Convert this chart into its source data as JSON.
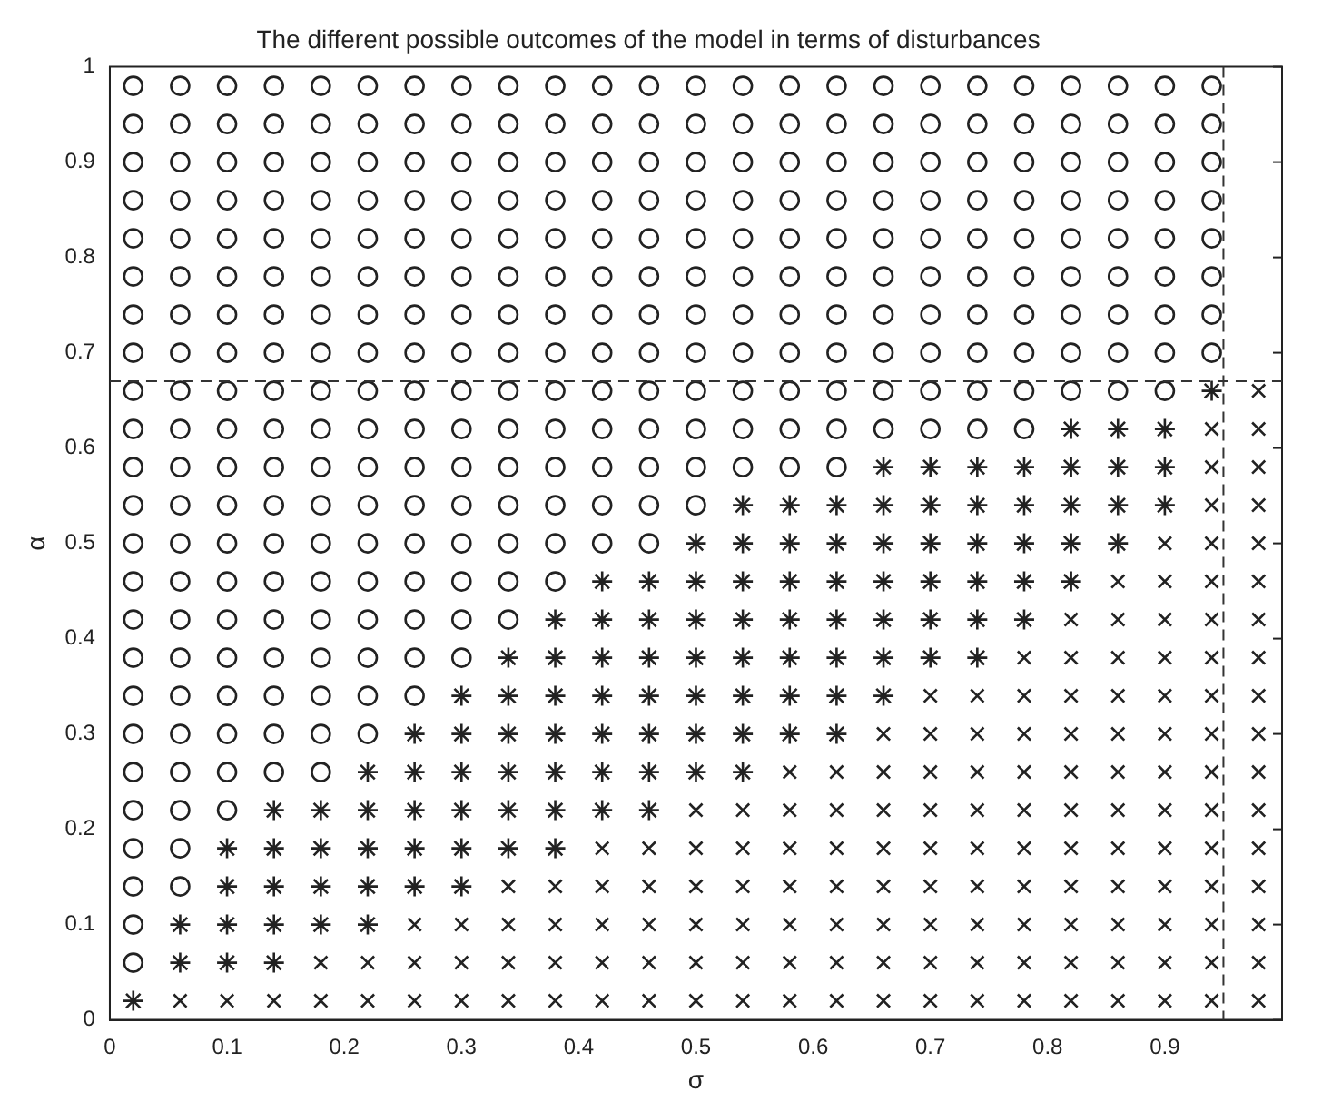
{
  "chart_data": {
    "type": "scatter",
    "title": "The different possible outcomes of the model in terms of disturbances",
    "xlabel": "σ",
    "ylabel": "α",
    "xlim": [
      0,
      1
    ],
    "ylim": [
      0,
      1
    ],
    "xticks": [
      0,
      0.1,
      0.2,
      0.3,
      0.4,
      0.5,
      0.6,
      0.7,
      0.8,
      0.9
    ],
    "yticks": [
      0,
      0.1,
      0.2,
      0.3,
      0.4,
      0.5,
      0.6,
      0.7,
      0.8,
      0.9,
      1
    ],
    "ref_lines": [
      {
        "axis": "y",
        "value": 0.67,
        "color": "#333333",
        "line_style": "dashed"
      },
      {
        "axis": "x",
        "value": 0.95,
        "color": "#333333",
        "line_style": "dashed"
      }
    ],
    "series": [
      {
        "color": "#222222",
        "marker": "circle",
        "x": [
          0.02,
          0.02,
          0.02,
          0.06,
          0.02,
          0.06,
          0.02,
          0.06,
          0.1,
          0.02,
          0.06,
          0.1,
          0.14,
          0.18,
          0.02,
          0.06,
          0.1,
          0.14,
          0.18,
          0.22,
          0.02,
          0.06,
          0.1,
          0.14,
          0.18,
          0.22,
          0.26,
          0.02,
          0.06,
          0.1,
          0.14,
          0.18,
          0.22,
          0.26,
          0.3,
          0.02,
          0.06,
          0.1,
          0.14,
          0.18,
          0.22,
          0.26,
          0.3,
          0.34,
          0.02,
          0.06,
          0.1,
          0.14,
          0.18,
          0.22,
          0.26,
          0.3,
          0.34,
          0.38,
          0.02,
          0.06,
          0.1,
          0.14,
          0.18,
          0.22,
          0.26,
          0.3,
          0.34,
          0.38,
          0.42,
          0.46,
          0.02,
          0.06,
          0.1,
          0.14,
          0.18,
          0.22,
          0.26,
          0.3,
          0.34,
          0.38,
          0.42,
          0.46,
          0.5,
          0.02,
          0.06,
          0.1,
          0.14,
          0.18,
          0.22,
          0.26,
          0.3,
          0.34,
          0.38,
          0.42,
          0.46,
          0.5,
          0.54,
          0.58,
          0.62,
          0.02,
          0.06,
          0.1,
          0.14,
          0.18,
          0.22,
          0.26,
          0.3,
          0.34,
          0.38,
          0.42,
          0.46,
          0.5,
          0.54,
          0.58,
          0.62,
          0.66,
          0.7,
          0.74,
          0.78,
          0.02,
          0.06,
          0.1,
          0.14,
          0.18,
          0.22,
          0.26,
          0.3,
          0.34,
          0.38,
          0.42,
          0.46,
          0.5,
          0.54,
          0.58,
          0.62,
          0.66,
          0.7,
          0.74,
          0.78,
          0.82,
          0.86,
          0.9,
          0.02,
          0.06,
          0.1,
          0.14,
          0.18,
          0.22,
          0.26,
          0.3,
          0.34,
          0.38,
          0.42,
          0.46,
          0.5,
          0.54,
          0.58,
          0.62,
          0.66,
          0.7,
          0.74,
          0.78,
          0.82,
          0.86,
          0.9,
          0.94,
          0.02,
          0.06,
          0.1,
          0.14,
          0.18,
          0.22,
          0.26,
          0.3,
          0.34,
          0.38,
          0.42,
          0.46,
          0.5,
          0.54,
          0.58,
          0.62,
          0.66,
          0.7,
          0.74,
          0.78,
          0.82,
          0.86,
          0.9,
          0.94,
          0.02,
          0.06,
          0.1,
          0.14,
          0.18,
          0.22,
          0.26,
          0.3,
          0.34,
          0.38,
          0.42,
          0.46,
          0.5,
          0.54,
          0.58,
          0.62,
          0.66,
          0.7,
          0.74,
          0.78,
          0.82,
          0.86,
          0.9,
          0.94,
          0.02,
          0.06,
          0.1,
          0.14,
          0.18,
          0.22,
          0.26,
          0.3,
          0.34,
          0.38,
          0.42,
          0.46,
          0.5,
          0.54,
          0.58,
          0.62,
          0.66,
          0.7,
          0.74,
          0.78,
          0.82,
          0.86,
          0.9,
          0.94,
          0.02,
          0.06,
          0.1,
          0.14,
          0.18,
          0.22,
          0.26,
          0.3,
          0.34,
          0.38,
          0.42,
          0.46,
          0.5,
          0.54,
          0.58,
          0.62,
          0.66,
          0.7,
          0.74,
          0.78,
          0.82,
          0.86,
          0.9,
          0.94,
          0.02,
          0.06,
          0.1,
          0.14,
          0.18,
          0.22,
          0.26,
          0.3,
          0.34,
          0.38,
          0.42,
          0.46,
          0.5,
          0.54,
          0.58,
          0.62,
          0.66,
          0.7,
          0.74,
          0.78,
          0.82,
          0.86,
          0.9,
          0.94,
          0.02,
          0.06,
          0.1,
          0.14,
          0.18,
          0.22,
          0.26,
          0.3,
          0.34,
          0.38,
          0.42,
          0.46,
          0.5,
          0.54,
          0.58,
          0.62,
          0.66,
          0.7,
          0.74,
          0.78,
          0.82,
          0.86,
          0.9,
          0.94,
          0.02,
          0.06,
          0.1,
          0.14,
          0.18,
          0.22,
          0.26,
          0.3,
          0.34,
          0.38,
          0.42,
          0.46,
          0.5,
          0.54,
          0.58,
          0.62,
          0.66,
          0.7,
          0.74,
          0.78,
          0.82,
          0.86,
          0.9,
          0.94
        ],
        "values": [
          0.06,
          0.1,
          0.14,
          0.14,
          0.18,
          0.18,
          0.22,
          0.22,
          0.22,
          0.26,
          0.26,
          0.26,
          0.26,
          0.26,
          0.3,
          0.3,
          0.3,
          0.3,
          0.3,
          0.3,
          0.34,
          0.34,
          0.34,
          0.34,
          0.34,
          0.34,
          0.34,
          0.38,
          0.38,
          0.38,
          0.38,
          0.38,
          0.38,
          0.38,
          0.38,
          0.42,
          0.42,
          0.42,
          0.42,
          0.42,
          0.42,
          0.42,
          0.42,
          0.42,
          0.46,
          0.46,
          0.46,
          0.46,
          0.46,
          0.46,
          0.46,
          0.46,
          0.46,
          0.46,
          0.5,
          0.5,
          0.5,
          0.5,
          0.5,
          0.5,
          0.5,
          0.5,
          0.5,
          0.5,
          0.5,
          0.5,
          0.54,
          0.54,
          0.54,
          0.54,
          0.54,
          0.54,
          0.54,
          0.54,
          0.54,
          0.54,
          0.54,
          0.54,
          0.54,
          0.58,
          0.58,
          0.58,
          0.58,
          0.58,
          0.58,
          0.58,
          0.58,
          0.58,
          0.58,
          0.58,
          0.58,
          0.58,
          0.58,
          0.58,
          0.58,
          0.62,
          0.62,
          0.62,
          0.62,
          0.62,
          0.62,
          0.62,
          0.62,
          0.62,
          0.62,
          0.62,
          0.62,
          0.62,
          0.62,
          0.62,
          0.62,
          0.62,
          0.62,
          0.62,
          0.62,
          0.66,
          0.66,
          0.66,
          0.66,
          0.66,
          0.66,
          0.66,
          0.66,
          0.66,
          0.66,
          0.66,
          0.66,
          0.66,
          0.66,
          0.66,
          0.66,
          0.66,
          0.66,
          0.66,
          0.66,
          0.66,
          0.66,
          0.66,
          0.7,
          0.7,
          0.7,
          0.7,
          0.7,
          0.7,
          0.7,
          0.7,
          0.7,
          0.7,
          0.7,
          0.7,
          0.7,
          0.7,
          0.7,
          0.7,
          0.7,
          0.7,
          0.7,
          0.7,
          0.7,
          0.7,
          0.7,
          0.7,
          0.74,
          0.74,
          0.74,
          0.74,
          0.74,
          0.74,
          0.74,
          0.74,
          0.74,
          0.74,
          0.74,
          0.74,
          0.74,
          0.74,
          0.74,
          0.74,
          0.74,
          0.74,
          0.74,
          0.74,
          0.74,
          0.74,
          0.74,
          0.74,
          0.78,
          0.78,
          0.78,
          0.78,
          0.78,
          0.78,
          0.78,
          0.78,
          0.78,
          0.78,
          0.78,
          0.78,
          0.78,
          0.78,
          0.78,
          0.78,
          0.78,
          0.78,
          0.78,
          0.78,
          0.78,
          0.78,
          0.78,
          0.78,
          0.82,
          0.82,
          0.82,
          0.82,
          0.82,
          0.82,
          0.82,
          0.82,
          0.82,
          0.82,
          0.82,
          0.82,
          0.82,
          0.82,
          0.82,
          0.82,
          0.82,
          0.82,
          0.82,
          0.82,
          0.82,
          0.82,
          0.82,
          0.82,
          0.86,
          0.86,
          0.86,
          0.86,
          0.86,
          0.86,
          0.86,
          0.86,
          0.86,
          0.86,
          0.86,
          0.86,
          0.86,
          0.86,
          0.86,
          0.86,
          0.86,
          0.86,
          0.86,
          0.86,
          0.86,
          0.86,
          0.86,
          0.86,
          0.9,
          0.9,
          0.9,
          0.9,
          0.9,
          0.9,
          0.9,
          0.9,
          0.9,
          0.9,
          0.9,
          0.9,
          0.9,
          0.9,
          0.9,
          0.9,
          0.9,
          0.9,
          0.9,
          0.9,
          0.9,
          0.9,
          0.9,
          0.9,
          0.94,
          0.94,
          0.94,
          0.94,
          0.94,
          0.94,
          0.94,
          0.94,
          0.94,
          0.94,
          0.94,
          0.94,
          0.94,
          0.94,
          0.94,
          0.94,
          0.94,
          0.94,
          0.94,
          0.94,
          0.94,
          0.94,
          0.94,
          0.94,
          0.98,
          0.98,
          0.98,
          0.98,
          0.98,
          0.98,
          0.98,
          0.98,
          0.98,
          0.98,
          0.98,
          0.98,
          0.98,
          0.98,
          0.98,
          0.98,
          0.98,
          0.98,
          0.98,
          0.98,
          0.98,
          0.98,
          0.98,
          0.98
        ]
      },
      {
        "color": "#222222",
        "marker": "cross",
        "x": [
          0.02,
          0.06,
          0.06,
          0.1,
          0.1,
          0.1,
          0.1,
          0.14,
          0.14,
          0.14,
          0.14,
          0.14,
          0.18,
          0.18,
          0.18,
          0.18,
          0.22,
          0.22,
          0.22,
          0.22,
          0.22,
          0.26,
          0.26,
          0.26,
          0.26,
          0.26,
          0.3,
          0.3,
          0.3,
          0.3,
          0.3,
          0.3,
          0.34,
          0.34,
          0.34,
          0.34,
          0.34,
          0.34,
          0.38,
          0.38,
          0.38,
          0.38,
          0.38,
          0.38,
          0.38,
          0.42,
          0.42,
          0.42,
          0.42,
          0.42,
          0.42,
          0.42,
          0.46,
          0.46,
          0.46,
          0.46,
          0.46,
          0.46,
          0.46,
          0.5,
          0.5,
          0.5,
          0.5,
          0.5,
          0.5,
          0.5,
          0.54,
          0.54,
          0.54,
          0.54,
          0.54,
          0.54,
          0.54,
          0.54,
          0.58,
          0.58,
          0.58,
          0.58,
          0.58,
          0.58,
          0.58,
          0.62,
          0.62,
          0.62,
          0.62,
          0.62,
          0.62,
          0.62,
          0.66,
          0.66,
          0.66,
          0.66,
          0.66,
          0.66,
          0.66,
          0.7,
          0.7,
          0.7,
          0.7,
          0.7,
          0.7,
          0.74,
          0.74,
          0.74,
          0.74,
          0.74,
          0.74,
          0.78,
          0.78,
          0.78,
          0.78,
          0.78,
          0.82,
          0.82,
          0.82,
          0.82,
          0.82,
          0.86,
          0.86,
          0.86,
          0.86,
          0.9,
          0.9,
          0.9,
          0.94
        ],
        "values": [
          0.02,
          0.06,
          0.1,
          0.06,
          0.1,
          0.14,
          0.18,
          0.06,
          0.1,
          0.14,
          0.18,
          0.22,
          0.1,
          0.14,
          0.18,
          0.22,
          0.1,
          0.14,
          0.18,
          0.22,
          0.26,
          0.14,
          0.18,
          0.22,
          0.26,
          0.3,
          0.14,
          0.18,
          0.22,
          0.26,
          0.3,
          0.34,
          0.18,
          0.22,
          0.26,
          0.3,
          0.34,
          0.38,
          0.18,
          0.22,
          0.26,
          0.3,
          0.34,
          0.38,
          0.42,
          0.22,
          0.26,
          0.3,
          0.34,
          0.38,
          0.42,
          0.46,
          0.22,
          0.26,
          0.3,
          0.34,
          0.38,
          0.42,
          0.46,
          0.26,
          0.3,
          0.34,
          0.38,
          0.42,
          0.46,
          0.5,
          0.26,
          0.3,
          0.34,
          0.38,
          0.42,
          0.46,
          0.5,
          0.54,
          0.3,
          0.34,
          0.38,
          0.42,
          0.46,
          0.5,
          0.54,
          0.3,
          0.34,
          0.38,
          0.42,
          0.46,
          0.5,
          0.54,
          0.34,
          0.38,
          0.42,
          0.46,
          0.5,
          0.54,
          0.58,
          0.38,
          0.42,
          0.46,
          0.5,
          0.54,
          0.58,
          0.38,
          0.42,
          0.46,
          0.5,
          0.54,
          0.58,
          0.42,
          0.46,
          0.5,
          0.54,
          0.58,
          0.46,
          0.5,
          0.54,
          0.58,
          0.62,
          0.5,
          0.54,
          0.58,
          0.62,
          0.54,
          0.58,
          0.62,
          0.66
        ]
      },
      {
        "color": "#222222",
        "marker": "cross",
        "x": [
          0.06,
          0.1,
          0.14,
          0.18,
          0.18,
          0.22,
          0.22,
          0.26,
          0.26,
          0.26,
          0.3,
          0.3,
          0.3,
          0.34,
          0.34,
          0.34,
          0.34,
          0.38,
          0.38,
          0.38,
          0.38,
          0.42,
          0.42,
          0.42,
          0.42,
          0.42,
          0.46,
          0.46,
          0.46,
          0.46,
          0.46,
          0.5,
          0.5,
          0.5,
          0.5,
          0.5,
          0.5,
          0.54,
          0.54,
          0.54,
          0.54,
          0.54,
          0.54,
          0.58,
          0.58,
          0.58,
          0.58,
          0.58,
          0.58,
          0.58,
          0.62,
          0.62,
          0.62,
          0.62,
          0.62,
          0.62,
          0.62,
          0.66,
          0.66,
          0.66,
          0.66,
          0.66,
          0.66,
          0.66,
          0.66,
          0.7,
          0.7,
          0.7,
          0.7,
          0.7,
          0.7,
          0.7,
          0.7,
          0.7,
          0.74,
          0.74,
          0.74,
          0.74,
          0.74,
          0.74,
          0.74,
          0.74,
          0.74,
          0.78,
          0.78,
          0.78,
          0.78,
          0.78,
          0.78,
          0.78,
          0.78,
          0.78,
          0.78,
          0.82,
          0.82,
          0.82,
          0.82,
          0.82,
          0.82,
          0.82,
          0.82,
          0.82,
          0.82,
          0.82,
          0.86,
          0.86,
          0.86,
          0.86,
          0.86,
          0.86,
          0.86,
          0.86,
          0.86,
          0.86,
          0.86,
          0.86,
          0.9,
          0.9,
          0.9,
          0.9,
          0.9,
          0.9,
          0.9,
          0.9,
          0.9,
          0.9,
          0.9,
          0.9,
          0.9,
          0.94,
          0.94,
          0.94,
          0.94,
          0.94,
          0.94,
          0.94,
          0.94,
          0.94,
          0.94,
          0.94,
          0.94,
          0.94,
          0.94,
          0.94,
          0.94,
          0.98,
          0.98,
          0.98,
          0.98,
          0.98,
          0.98,
          0.98,
          0.98,
          0.98,
          0.98,
          0.98,
          0.98,
          0.98,
          0.98,
          0.98,
          0.98,
          0.98
        ],
        "values": [
          0.02,
          0.02,
          0.02,
          0.02,
          0.06,
          0.02,
          0.06,
          0.02,
          0.06,
          0.1,
          0.02,
          0.06,
          0.1,
          0.02,
          0.06,
          0.1,
          0.14,
          0.02,
          0.06,
          0.1,
          0.14,
          0.02,
          0.06,
          0.1,
          0.14,
          0.18,
          0.02,
          0.06,
          0.1,
          0.14,
          0.18,
          0.02,
          0.06,
          0.1,
          0.14,
          0.18,
          0.22,
          0.02,
          0.06,
          0.1,
          0.14,
          0.18,
          0.22,
          0.02,
          0.06,
          0.1,
          0.14,
          0.18,
          0.22,
          0.26,
          0.02,
          0.06,
          0.1,
          0.14,
          0.18,
          0.22,
          0.26,
          0.02,
          0.06,
          0.1,
          0.14,
          0.18,
          0.22,
          0.26,
          0.3,
          0.02,
          0.06,
          0.1,
          0.14,
          0.18,
          0.22,
          0.26,
          0.3,
          0.34,
          0.02,
          0.06,
          0.1,
          0.14,
          0.18,
          0.22,
          0.26,
          0.3,
          0.34,
          0.02,
          0.06,
          0.1,
          0.14,
          0.18,
          0.22,
          0.26,
          0.3,
          0.34,
          0.38,
          0.02,
          0.06,
          0.1,
          0.14,
          0.18,
          0.22,
          0.26,
          0.3,
          0.34,
          0.38,
          0.42,
          0.02,
          0.06,
          0.1,
          0.14,
          0.18,
          0.22,
          0.26,
          0.3,
          0.34,
          0.38,
          0.42,
          0.46,
          0.02,
          0.06,
          0.1,
          0.14,
          0.18,
          0.22,
          0.26,
          0.3,
          0.34,
          0.38,
          0.42,
          0.46,
          0.5,
          0.02,
          0.06,
          0.1,
          0.14,
          0.18,
          0.22,
          0.26,
          0.3,
          0.34,
          0.38,
          0.42,
          0.46,
          0.5,
          0.54,
          0.58,
          0.62,
          0.02,
          0.06,
          0.1,
          0.14,
          0.18,
          0.22,
          0.26,
          0.3,
          0.34,
          0.38,
          0.42,
          0.46,
          0.5,
          0.54,
          0.58,
          0.62,
          0.66
        ]
      }
    ]
  }
}
